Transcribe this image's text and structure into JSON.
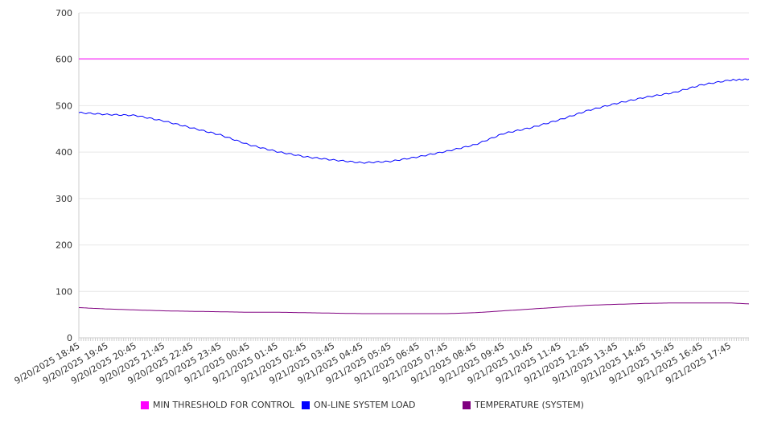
{
  "chart_data": {
    "type": "line",
    "title": "",
    "xlabel": "",
    "ylabel": "",
    "ylim": [
      0,
      700
    ],
    "yticks": [
      0,
      100,
      200,
      300,
      400,
      500,
      600,
      700
    ],
    "grid": true,
    "legend_position": "bottom",
    "x_tick_labels": [
      "9/20/2025 18:45",
      "9/20/2025 19:45",
      "9/20/2025 20:45",
      "9/20/2025 21:45",
      "9/20/2025 22:45",
      "9/20/2025 23:45",
      "9/21/2025 00:45",
      "9/21/2025 01:45",
      "9/21/2025 02:45",
      "9/21/2025 03:45",
      "9/21/2025 04:45",
      "9/21/2025 05:45",
      "9/21/2025 06:45",
      "9/21/2025 07:45",
      "9/21/2025 08:45",
      "9/21/2025 09:45",
      "9/21/2025 10:45",
      "9/21/2025 11:45",
      "9/21/2025 12:45",
      "9/21/2025 13:45",
      "9/21/2025 14:45",
      "9/21/2025 15:45",
      "9/21/2025 16:45",
      "9/21/2025 17:45"
    ],
    "x_hours": [
      0,
      1,
      2,
      3,
      4,
      5,
      6,
      7,
      8,
      9,
      10,
      11,
      12,
      13,
      14,
      15,
      16,
      17,
      18,
      19,
      20,
      21,
      22,
      23,
      23.67
    ],
    "x_range_hours": [
      0,
      23.67
    ],
    "series": [
      {
        "name": "MIN THRESHOLD FOR CONTROL",
        "color": "#ff00ff",
        "values": [
          601,
          601,
          601,
          601,
          601,
          601,
          601,
          601,
          601,
          601,
          601,
          601,
          601,
          601,
          601,
          601,
          601,
          601,
          601,
          601,
          601,
          601,
          601,
          601,
          601
        ]
      },
      {
        "name": "ON-LINE SYSTEM LOAD",
        "color": "#0000ff",
        "values": [
          485,
          481,
          479,
          467,
          452,
          437,
          416,
          401,
          390,
          383,
          377,
          380,
          390,
          402,
          416,
          440,
          453,
          470,
          490,
          505,
          518,
          528,
          545,
          555,
          557
        ]
      },
      {
        "name": "TEMPERATURE (SYSTEM)",
        "color": "#800080",
        "values": [
          65,
          62,
          60,
          58,
          57,
          56,
          55,
          55,
          54,
          53,
          52,
          52,
          52,
          52,
          54,
          58,
          62,
          66,
          70,
          72,
          74,
          75,
          75,
          75,
          73
        ]
      }
    ]
  }
}
